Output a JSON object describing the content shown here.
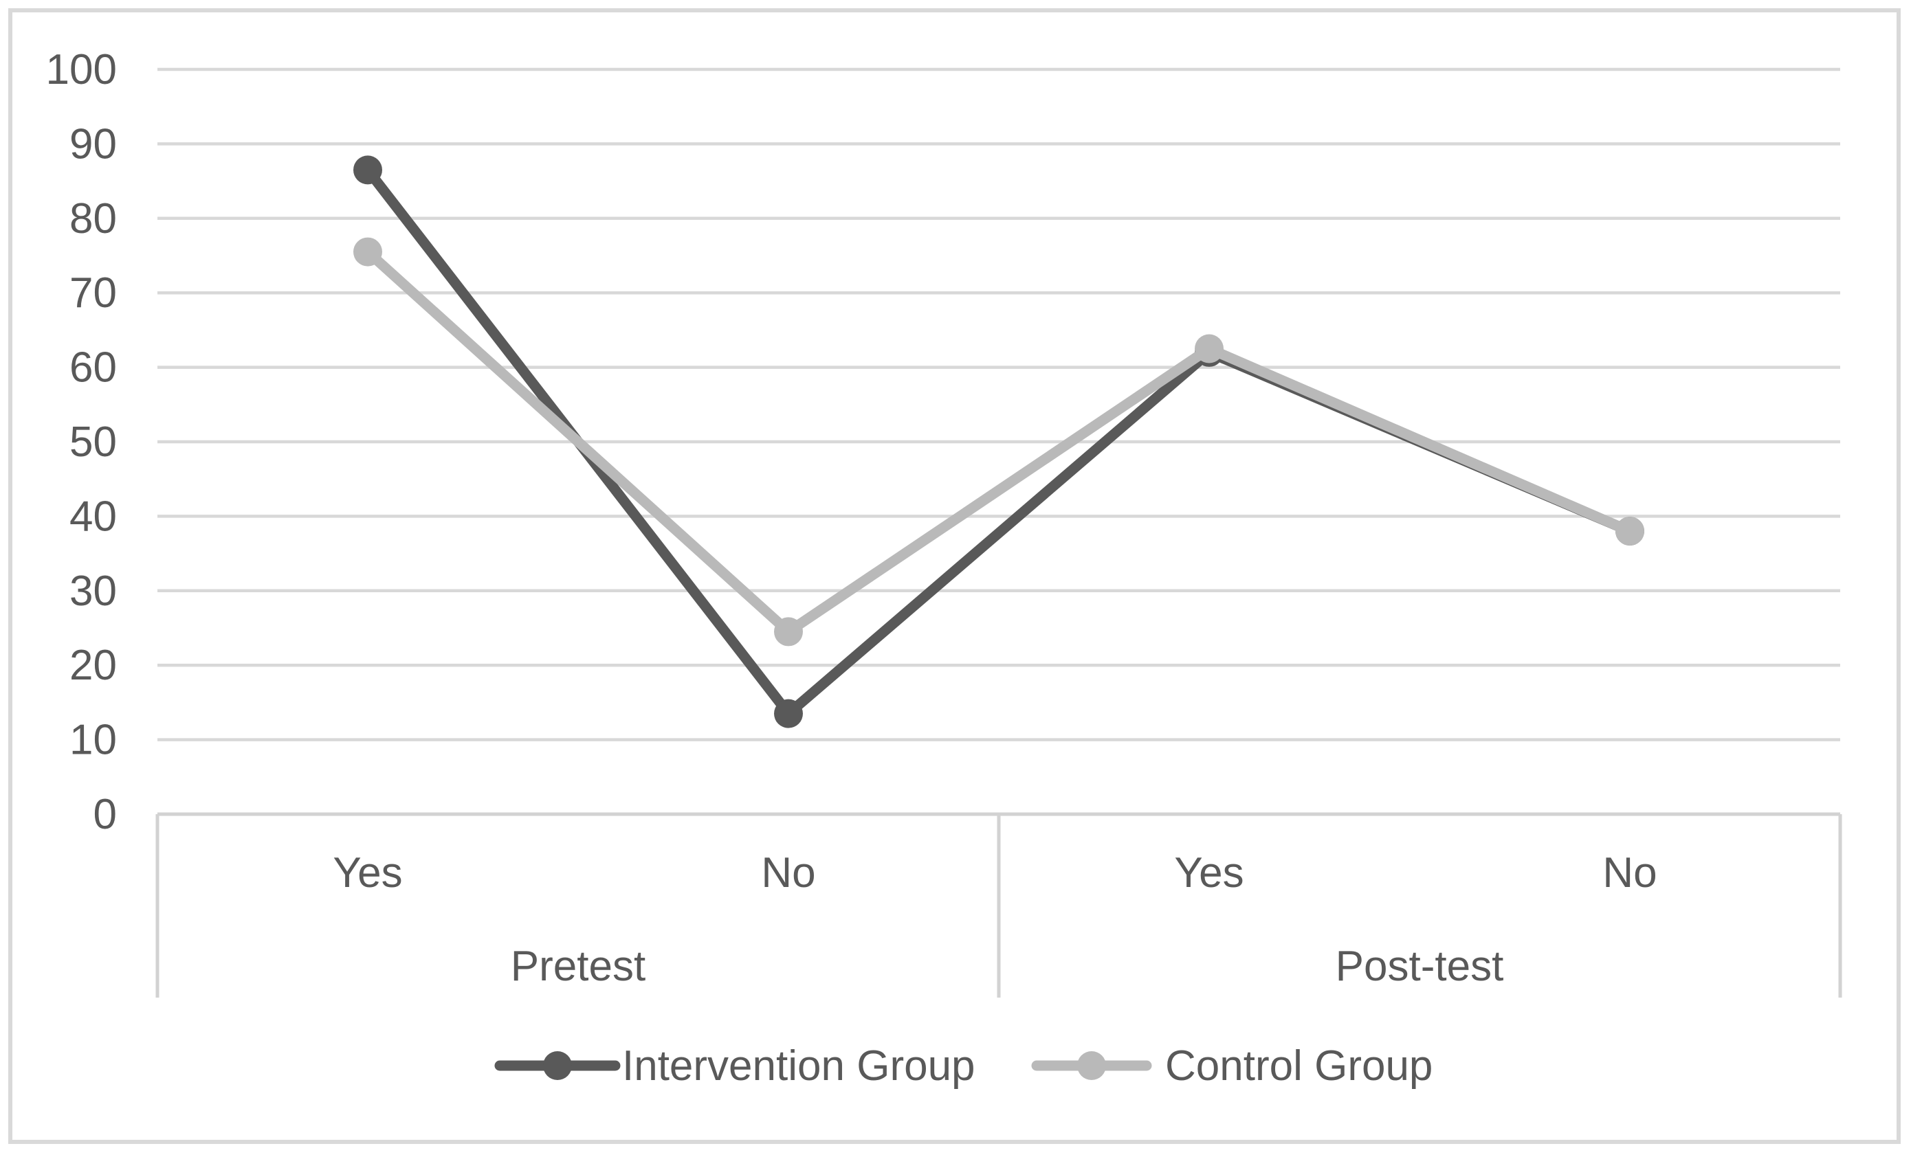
{
  "chart_data": {
    "type": "line",
    "title": "",
    "xlabel": "",
    "ylabel": "",
    "categories": [
      "Yes",
      "No",
      "Yes",
      "No"
    ],
    "category_groups": [
      {
        "label": "Pretest",
        "span": [
          0,
          1
        ]
      },
      {
        "label": "Post-test",
        "span": [
          2,
          3
        ]
      }
    ],
    "series": [
      {
        "name": "Intervention Group",
        "color": "#595959",
        "values": [
          86.5,
          13.5,
          62,
          38
        ]
      },
      {
        "name": "Control Group",
        "color": "#b9b9b9",
        "values": [
          75.5,
          24.5,
          62.5,
          38
        ]
      }
    ],
    "ylim": [
      0,
      100
    ],
    "yticks": [
      0,
      10,
      20,
      30,
      40,
      50,
      60,
      70,
      80,
      90,
      100
    ],
    "grid": true,
    "marker": "circle",
    "legend_position": "bottom"
  },
  "colors": {
    "background": "#ffffff",
    "frame_border": "#d9d9d9",
    "gridline": "#d8d8d8",
    "axis_line": "#d2d2d2",
    "divider": "#d2d2d2",
    "tick_text": "#595959",
    "category_text": "#595959",
    "legend_text": "#595959"
  }
}
